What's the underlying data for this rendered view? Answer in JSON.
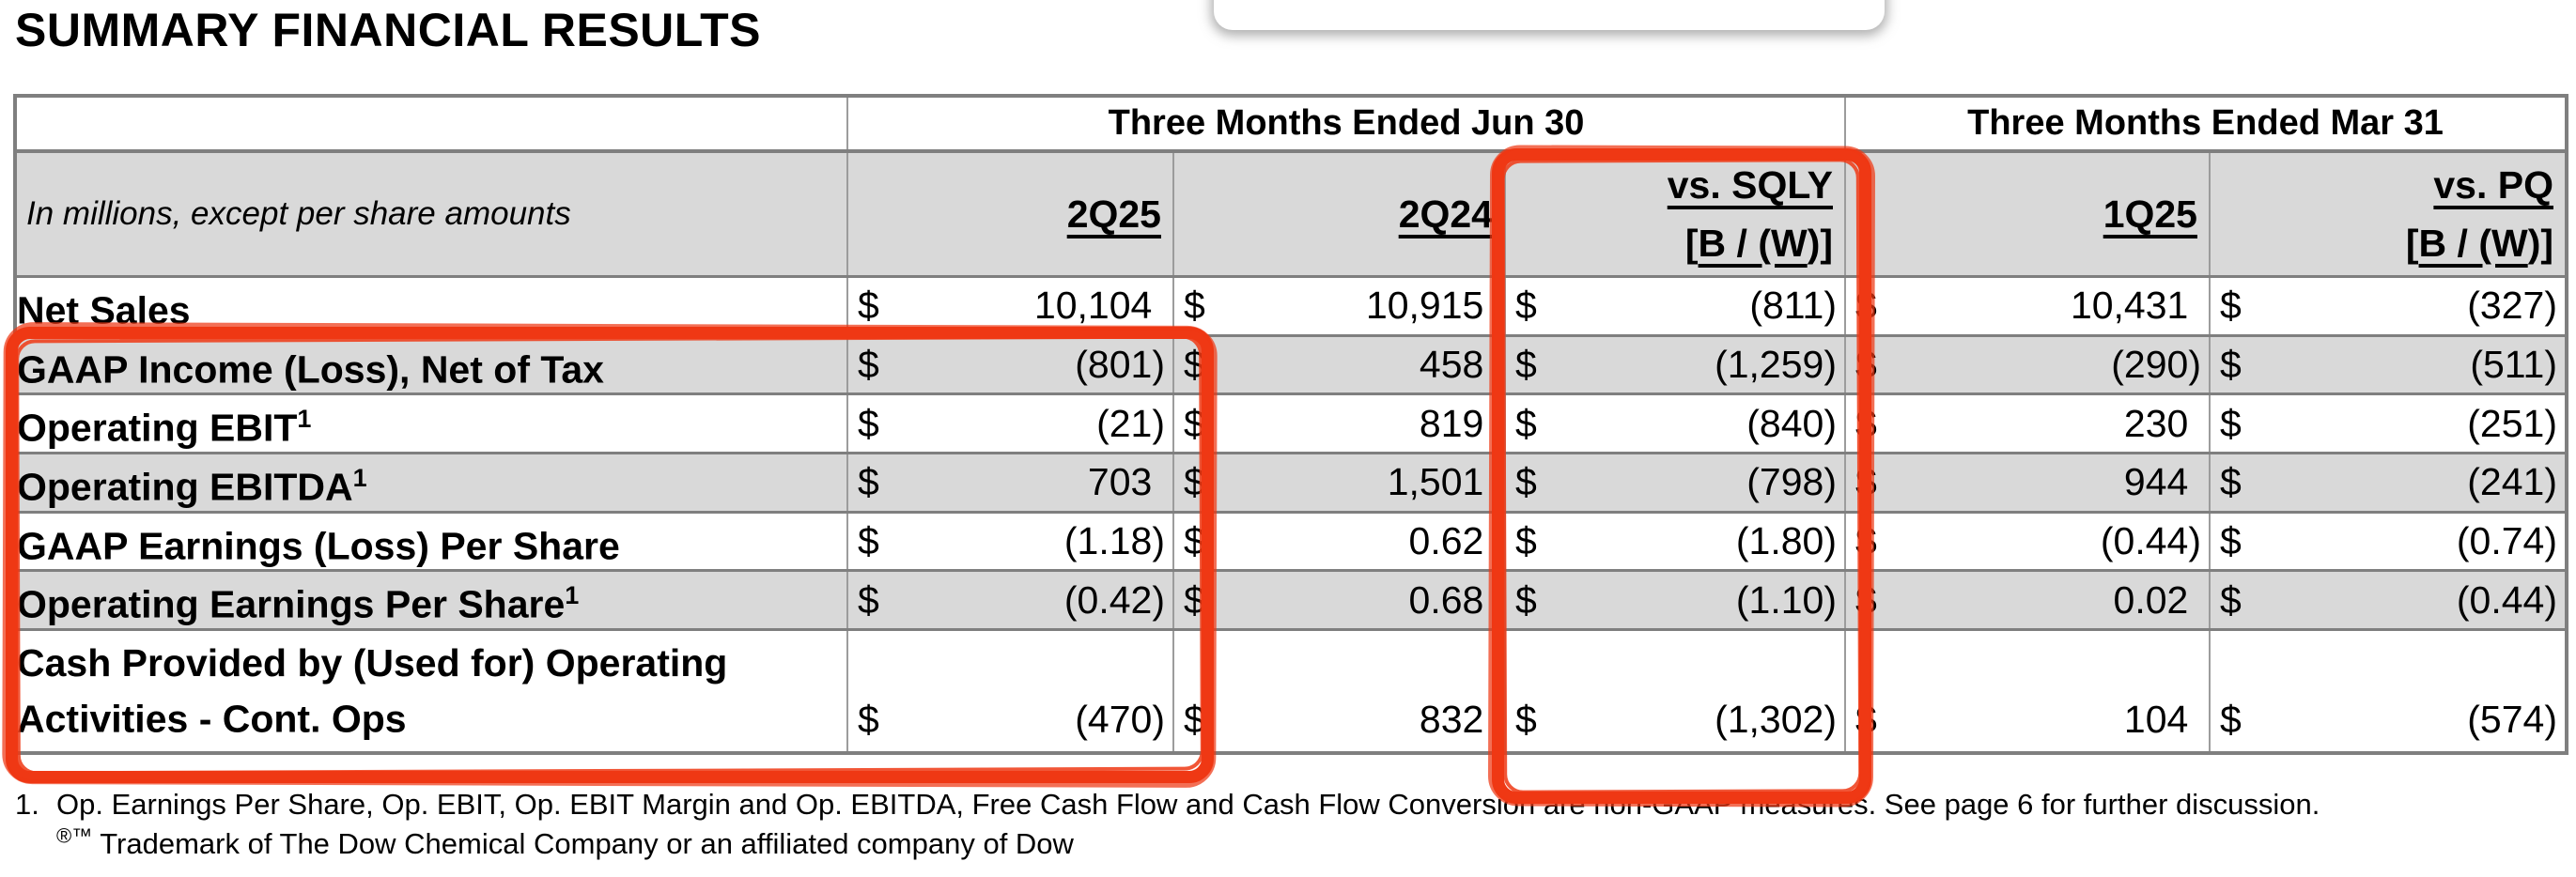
{
  "page": {
    "title": "SUMMARY FINANCIAL RESULTS"
  },
  "colors": {
    "highlight_marker_red": "#ef3814",
    "header_row_fill": "#d9d9d9",
    "grid_line_gray": "#7f7f7f"
  },
  "table": {
    "currency": "$",
    "note": "In millions, except per share amounts",
    "period_groups": [
      {
        "label": "Three Months Ended Jun 30"
      },
      {
        "label": "Three Months Ended Mar 31"
      }
    ],
    "columns": [
      {
        "label": "2Q25"
      },
      {
        "label": "2Q24"
      },
      {
        "label": "vs. SQLY",
        "sub_prefix": "[",
        "sub_underlined": "B / (W",
        "sub_suffix": ")]"
      },
      {
        "label": "1Q25"
      },
      {
        "label": "vs. PQ",
        "sub_prefix": "[",
        "sub_underlined": "B / (W",
        "sub_suffix": ")]"
      }
    ],
    "rows": [
      {
        "label": "Net Sales",
        "values": [
          "10,104",
          "10,915",
          "(811)",
          "10,431",
          "(327)"
        ]
      },
      {
        "label": "GAAP Income (Loss), Net of Tax",
        "values": [
          "(801)",
          "458",
          "(1,259)",
          "(290)",
          "(511)"
        ]
      },
      {
        "label": "Operating EBIT",
        "footnote_ref": "1",
        "values": [
          "(21)",
          "819",
          "(840)",
          "230",
          "(251)"
        ]
      },
      {
        "label": "Operating EBITDA",
        "footnote_ref": "1",
        "values": [
          "703",
          "1,501",
          "(798)",
          "944",
          "(241)"
        ]
      },
      {
        "label": "GAAP Earnings (Loss) Per Share",
        "values": [
          "(1.18)",
          "0.62",
          "(1.80)",
          "(0.44)",
          "(0.74)"
        ]
      },
      {
        "label": "Operating Earnings Per Share",
        "footnote_ref": "1",
        "values": [
          "(0.42)",
          "0.68",
          "(1.10)",
          "0.02",
          "(0.44)"
        ]
      },
      {
        "label": "Cash Provided by (Used for) Operating Activities - Cont. Ops",
        "values": [
          "(470)",
          "832",
          "(1,302)",
          "104",
          "(574)"
        ]
      }
    ]
  },
  "footnotes": [
    {
      "marker": "1.",
      "text": "Op. Earnings Per Share, Op. EBIT, Op. EBIT Margin and Op. EBITDA, Free Cash Flow and Cash Flow Conversion are non-GAAP measures. See page 6 for further discussion."
    },
    {
      "marker": "®™",
      "text": " Trademark of The Dow Chemical Company or an affiliated company of Dow"
    }
  ]
}
